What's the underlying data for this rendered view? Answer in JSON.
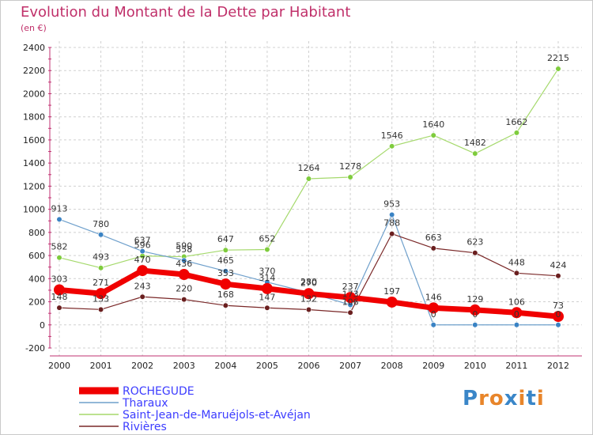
{
  "title": "Evolution du Montant de la Dette par Habitant",
  "subtitle": "(en €)",
  "logo": {
    "text": "Proxiti",
    "letter_colors": [
      "#3a86c8",
      "#e8852a",
      "#e8852a",
      "#3a86c8",
      "#e8852a",
      "#3a86c8",
      "#e8852a"
    ]
  },
  "chart_data": {
    "type": "line",
    "x": [
      2000,
      2001,
      2002,
      2003,
      2004,
      2005,
      2006,
      2007,
      2008,
      2009,
      2010,
      2011,
      2012
    ],
    "ylim": [
      -200,
      2400
    ],
    "yticks": [
      -200,
      0,
      200,
      400,
      600,
      800,
      1000,
      1200,
      1400,
      1600,
      1800,
      2000,
      2200,
      2400
    ],
    "grid": true,
    "legend_position": "bottom-left",
    "series": [
      {
        "name": "Saint-Jean-de-Maruéjols-et-Avéjan",
        "color": "#a5d96c",
        "point_color": "#7fcc3d",
        "width": 1.2,
        "values": [
          582,
          493,
          596,
          590,
          647,
          652,
          1264,
          1278,
          1546,
          1640,
          1482,
          1662,
          2215
        ]
      },
      {
        "name": "Tharaux",
        "color": "#6fa0cc",
        "point_color": "#3a83c4",
        "width": 1.2,
        "values": [
          913,
          780,
          637,
          558,
          465,
          370,
          280,
          173,
          953,
          0,
          0,
          0,
          0
        ]
      },
      {
        "name": "Rivières",
        "color": "#7a2828",
        "point_color": "#6a1f1f",
        "width": 1.2,
        "values": [
          148,
          133,
          243,
          220,
          168,
          147,
          132,
          106,
          788,
          663,
          623,
          448,
          424
        ]
      },
      {
        "name": "ROCHEGUDE",
        "color": "#f00000",
        "point_color": "#f00000",
        "width": 7,
        "values": [
          303,
          271,
          470,
          436,
          353,
          314,
          270,
          237,
          197,
          146,
          129,
          106,
          73
        ]
      }
    ]
  }
}
